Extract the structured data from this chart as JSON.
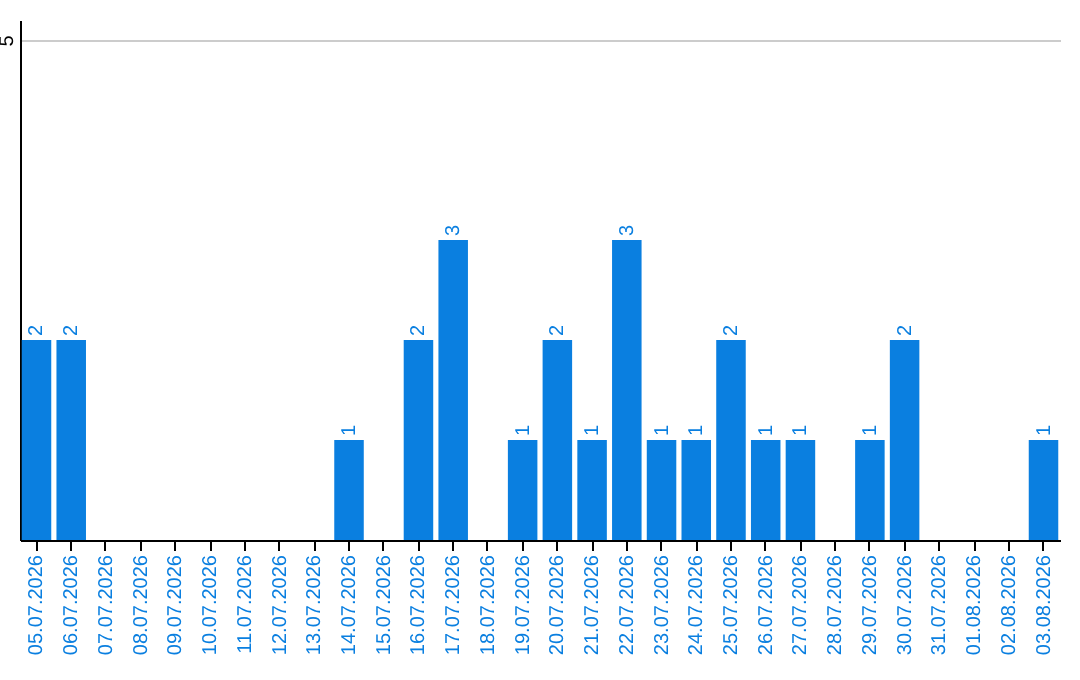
{
  "chart_data": {
    "type": "bar",
    "categories": [
      "05.07.2026",
      "06.07.2026",
      "07.07.2026",
      "08.07.2026",
      "09.07.2026",
      "10.07.2026",
      "11.07.2026",
      "12.07.2026",
      "13.07.2026",
      "14.07.2026",
      "15.07.2026",
      "16.07.2026",
      "17.07.2026",
      "18.07.2026",
      "19.07.2026",
      "20.07.2026",
      "21.07.2026",
      "22.07.2026",
      "23.07.2026",
      "24.07.2026",
      "25.07.2026",
      "26.07.2026",
      "27.07.2026",
      "28.07.2026",
      "29.07.2026",
      "30.07.2026",
      "31.07.2026",
      "01.08.2026",
      "02.08.2026",
      "03.08.2026"
    ],
    "values": [
      2,
      2,
      0,
      0,
      0,
      0,
      0,
      0,
      0,
      1,
      0,
      2,
      3,
      0,
      1,
      2,
      1,
      3,
      1,
      1,
      2,
      1,
      1,
      0,
      1,
      2,
      0,
      0,
      0,
      1
    ],
    "value_labels": [
      "2",
      "2",
      null,
      null,
      null,
      null,
      null,
      null,
      null,
      "1",
      null,
      "2",
      "3",
      null,
      "1",
      "2",
      "1",
      "3",
      "1",
      "1",
      "2",
      "1",
      "1",
      null,
      "1",
      "2",
      null,
      null,
      null,
      "1"
    ],
    "color": "#0a7fe0",
    "ylim": [
      0,
      5.2
    ],
    "yticks": [
      5
    ],
    "grid": "y"
  }
}
